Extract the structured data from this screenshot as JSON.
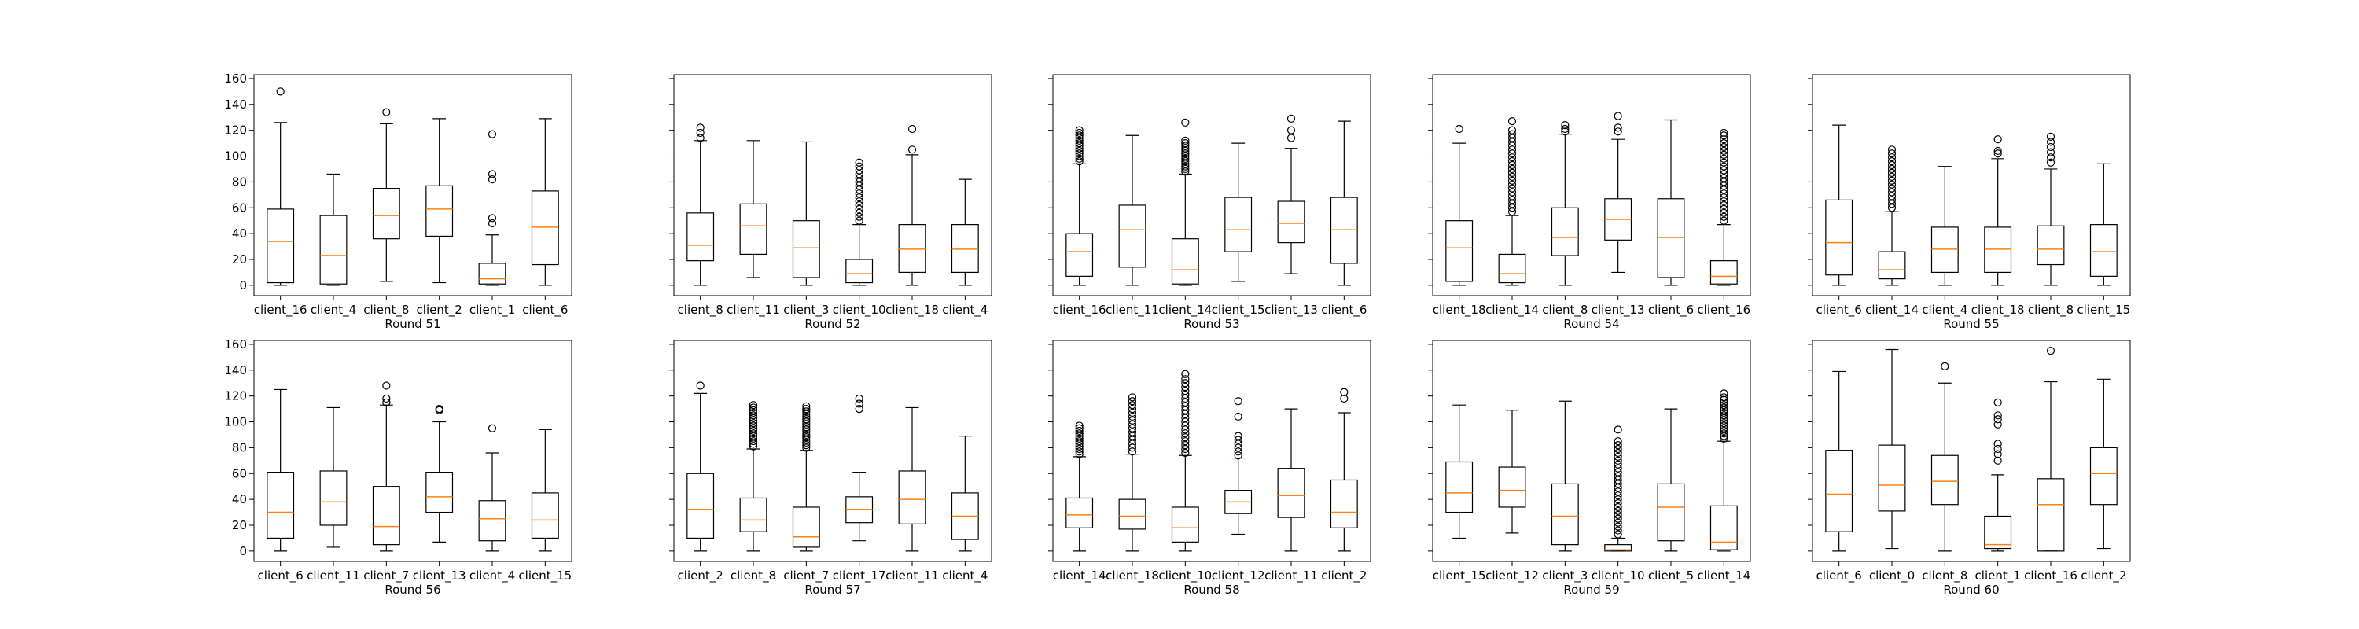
{
  "chart_data": {
    "type": "boxplot",
    "shared_y": true,
    "ylim": [
      -8,
      163
    ],
    "yticks": [
      0,
      20,
      40,
      60,
      80,
      100,
      120,
      140,
      160
    ],
    "colors": {
      "box": "#000000",
      "median": "#ff7f0e",
      "flier": "#000000",
      "frame": "#000000"
    },
    "panels": [
      {
        "xlabel": "Round 51",
        "boxes": [
          {
            "label": "client_16",
            "whislo": 0,
            "q1": 2,
            "med": 34,
            "q3": 59,
            "whishi": 126,
            "fliers": [
              150
            ]
          },
          {
            "label": "client_4",
            "whislo": 0,
            "q1": 1,
            "med": 23,
            "q3": 54,
            "whishi": 86,
            "fliers": []
          },
          {
            "label": "client_8",
            "whislo": 3,
            "q1": 36,
            "med": 54,
            "q3": 75,
            "whishi": 125,
            "fliers": [
              134
            ]
          },
          {
            "label": "client_2",
            "whislo": 2,
            "q1": 38,
            "med": 59,
            "q3": 77,
            "whishi": 129,
            "fliers": []
          },
          {
            "label": "client_1",
            "whislo": 0,
            "q1": 1,
            "med": 5,
            "q3": 17,
            "whishi": 39,
            "fliers": [
              48,
              52,
              82,
              86,
              117
            ]
          },
          {
            "label": "client_6",
            "whislo": 0,
            "q1": 16,
            "med": 45,
            "q3": 73,
            "whishi": 129,
            "fliers": []
          }
        ]
      },
      {
        "xlabel": "Round 52",
        "boxes": [
          {
            "label": "client_8",
            "whislo": 0,
            "q1": 19,
            "med": 31,
            "q3": 56,
            "whishi": 112,
            "fliers": [
              114,
              118,
              122
            ]
          },
          {
            "label": "client_11",
            "whislo": 6,
            "q1": 24,
            "med": 46,
            "q3": 63,
            "whishi": 112,
            "fliers": []
          },
          {
            "label": "client_3",
            "whislo": 0,
            "q1": 6,
            "med": 29,
            "q3": 50,
            "whishi": 111,
            "fliers": []
          },
          {
            "label": "client_10",
            "whislo": 0,
            "q1": 2,
            "med": 9,
            "q3": 20,
            "whishi": 47,
            "fliers": [
              50,
              53,
              56,
              59,
              62,
              65,
              68,
              71,
              74,
              77,
              80,
              83,
              86,
              89,
              92,
              95
            ]
          },
          {
            "label": "client_18",
            "whislo": 0,
            "q1": 10,
            "med": 28,
            "q3": 47,
            "whishi": 101,
            "fliers": [
              105,
              121
            ]
          },
          {
            "label": "client_4",
            "whislo": 0,
            "q1": 10,
            "med": 28,
            "q3": 47,
            "whishi": 82,
            "fliers": []
          }
        ]
      },
      {
        "xlabel": "Round 53",
        "boxes": [
          {
            "label": "client_16",
            "whislo": 0,
            "q1": 7,
            "med": 26,
            "q3": 40,
            "whishi": 94,
            "fliers": [
              96,
              98,
              100,
              102,
              104,
              106,
              108,
              110,
              112,
              114,
              116,
              118,
              120
            ]
          },
          {
            "label": "client_11",
            "whislo": 0,
            "q1": 14,
            "med": 43,
            "q3": 62,
            "whishi": 116,
            "fliers": []
          },
          {
            "label": "client_14",
            "whislo": 0,
            "q1": 1,
            "med": 12,
            "q3": 36,
            "whishi": 86,
            "fliers": [
              88,
              90,
              92,
              94,
              96,
              98,
              100,
              102,
              104,
              106,
              108,
              110,
              112,
              126
            ]
          },
          {
            "label": "client_15",
            "whislo": 3,
            "q1": 26,
            "med": 43,
            "q3": 68,
            "whishi": 110,
            "fliers": []
          },
          {
            "label": "client_13",
            "whislo": 9,
            "q1": 33,
            "med": 48,
            "q3": 65,
            "whishi": 106,
            "fliers": [
              114,
              120,
              129
            ]
          },
          {
            "label": "client_6",
            "whislo": 0,
            "q1": 17,
            "med": 43,
            "q3": 68,
            "whishi": 127,
            "fliers": []
          }
        ]
      },
      {
        "xlabel": "Round 54",
        "boxes": [
          {
            "label": "client_18",
            "whislo": 0,
            "q1": 3,
            "med": 29,
            "q3": 50,
            "whishi": 110,
            "fliers": [
              121
            ]
          },
          {
            "label": "client_14",
            "whislo": 0,
            "q1": 2,
            "med": 9,
            "q3": 24,
            "whishi": 54,
            "fliers": [
              57,
              60,
              63,
              66,
              69,
              72,
              75,
              78,
              81,
              84,
              87,
              90,
              93,
              96,
              99,
              102,
              105,
              108,
              111,
              114,
              117,
              120,
              127
            ]
          },
          {
            "label": "client_8",
            "whislo": 0,
            "q1": 23,
            "med": 37,
            "q3": 60,
            "whishi": 117,
            "fliers": [
              119,
              121,
              124
            ]
          },
          {
            "label": "client_13",
            "whislo": 10,
            "q1": 35,
            "med": 51,
            "q3": 67,
            "whishi": 113,
            "fliers": [
              119,
              122,
              131
            ]
          },
          {
            "label": "client_6",
            "whislo": 0,
            "q1": 6,
            "med": 37,
            "q3": 67,
            "whishi": 128,
            "fliers": []
          },
          {
            "label": "client_16",
            "whislo": 0,
            "q1": 1,
            "med": 7,
            "q3": 19,
            "whishi": 47,
            "fliers": [
              50,
              53,
              56,
              59,
              62,
              65,
              68,
              71,
              74,
              77,
              80,
              83,
              86,
              89,
              92,
              95,
              98,
              101,
              104,
              107,
              110,
              113,
              116,
              118
            ]
          }
        ]
      },
      {
        "xlabel": "Round 55",
        "boxes": [
          {
            "label": "client_6",
            "whislo": 0,
            "q1": 8,
            "med": 33,
            "q3": 66,
            "whishi": 124,
            "fliers": []
          },
          {
            "label": "client_14",
            "whislo": 0,
            "q1": 5,
            "med": 12,
            "q3": 26,
            "whishi": 57,
            "fliers": [
              60,
              63,
              66,
              69,
              72,
              75,
              78,
              81,
              84,
              87,
              90,
              93,
              96,
              99,
              102,
              105
            ]
          },
          {
            "label": "client_4",
            "whislo": 0,
            "q1": 10,
            "med": 28,
            "q3": 45,
            "whishi": 92,
            "fliers": []
          },
          {
            "label": "client_18",
            "whislo": 0,
            "q1": 10,
            "med": 28,
            "q3": 45,
            "whishi": 98,
            "fliers": [
              102,
              104,
              113
            ]
          },
          {
            "label": "client_8",
            "whislo": 0,
            "q1": 16,
            "med": 28,
            "q3": 46,
            "whishi": 90,
            "fliers": [
              95,
              99,
              103,
              107,
              111,
              115
            ]
          },
          {
            "label": "client_15",
            "whislo": 0,
            "q1": 7,
            "med": 26,
            "q3": 47,
            "whishi": 94,
            "fliers": []
          }
        ]
      },
      {
        "xlabel": "Round 56",
        "boxes": [
          {
            "label": "client_6",
            "whislo": 0,
            "q1": 10,
            "med": 30,
            "q3": 61,
            "whishi": 125,
            "fliers": []
          },
          {
            "label": "client_11",
            "whislo": 3,
            "q1": 20,
            "med": 38,
            "q3": 62,
            "whishi": 111,
            "fliers": []
          },
          {
            "label": "client_7",
            "whislo": 0,
            "q1": 5,
            "med": 19,
            "q3": 50,
            "whishi": 113,
            "fliers": [
              115,
              118,
              128
            ]
          },
          {
            "label": "client_13",
            "whislo": 7,
            "q1": 30,
            "med": 42,
            "q3": 61,
            "whishi": 100,
            "fliers": [
              109,
              110
            ]
          },
          {
            "label": "client_4",
            "whislo": 0,
            "q1": 8,
            "med": 25,
            "q3": 39,
            "whishi": 76,
            "fliers": [
              95
            ]
          },
          {
            "label": "client_15",
            "whislo": 0,
            "q1": 10,
            "med": 24,
            "q3": 45,
            "whishi": 94,
            "fliers": []
          }
        ]
      },
      {
        "xlabel": "Round 57",
        "boxes": [
          {
            "label": "client_2",
            "whislo": 0,
            "q1": 10,
            "med": 32,
            "q3": 60,
            "whishi": 122,
            "fliers": [
              128
            ]
          },
          {
            "label": "client_8",
            "whislo": 0,
            "q1": 15,
            "med": 24,
            "q3": 41,
            "whishi": 79,
            "fliers": [
              81,
              83,
              85,
              87,
              89,
              91,
              93,
              95,
              97,
              99,
              101,
              103,
              105,
              107,
              109,
              111,
              113
            ]
          },
          {
            "label": "client_7",
            "whislo": 0,
            "q1": 3,
            "med": 11,
            "q3": 34,
            "whishi": 78,
            "fliers": [
              80,
              82,
              84,
              86,
              88,
              90,
              92,
              94,
              96,
              98,
              100,
              102,
              104,
              106,
              108,
              110,
              112
            ]
          },
          {
            "label": "client_17",
            "whislo": 8,
            "q1": 22,
            "med": 32,
            "q3": 42,
            "whishi": 61,
            "fliers": [
              110,
              114,
              118
            ]
          },
          {
            "label": "client_11",
            "whislo": 0,
            "q1": 21,
            "med": 40,
            "q3": 62,
            "whishi": 111,
            "fliers": []
          },
          {
            "label": "client_4",
            "whislo": 0,
            "q1": 9,
            "med": 27,
            "q3": 45,
            "whishi": 89,
            "fliers": []
          }
        ]
      },
      {
        "xlabel": "Round 58",
        "boxes": [
          {
            "label": "client_14",
            "whislo": 0,
            "q1": 18,
            "med": 28,
            "q3": 41,
            "whishi": 73,
            "fliers": [
              75,
              77,
              79,
              81,
              83,
              85,
              87,
              89,
              91,
              93,
              95,
              97
            ]
          },
          {
            "label": "client_18",
            "whislo": 0,
            "q1": 17,
            "med": 27,
            "q3": 40,
            "whishi": 75,
            "fliers": [
              77,
              80,
              83,
              86,
              89,
              92,
              95,
              98,
              101,
              104,
              107,
              110,
              113,
              116,
              119
            ]
          },
          {
            "label": "client_10",
            "whislo": 0,
            "q1": 7,
            "med": 18,
            "q3": 34,
            "whishi": 74,
            "fliers": [
              76,
              79,
              82,
              85,
              88,
              91,
              94,
              97,
              100,
              103,
              106,
              109,
              112,
              115,
              118,
              121,
              124,
              127,
              130,
              133,
              137
            ]
          },
          {
            "label": "client_12",
            "whislo": 13,
            "q1": 29,
            "med": 38,
            "q3": 47,
            "whishi": 72,
            "fliers": [
              74,
              77,
              80,
              83,
              86,
              89,
              104,
              116
            ]
          },
          {
            "label": "client_11",
            "whislo": 0,
            "q1": 26,
            "med": 43,
            "q3": 64,
            "whishi": 110,
            "fliers": []
          },
          {
            "label": "client_2",
            "whislo": 0,
            "q1": 18,
            "med": 30,
            "q3": 55,
            "whishi": 107,
            "fliers": [
              118,
              123
            ]
          }
        ]
      },
      {
        "xlabel": "Round 59",
        "boxes": [
          {
            "label": "client_15",
            "whislo": 10,
            "q1": 30,
            "med": 45,
            "q3": 69,
            "whishi": 113,
            "fliers": []
          },
          {
            "label": "client_12",
            "whislo": 14,
            "q1": 34,
            "med": 47,
            "q3": 65,
            "whishi": 109,
            "fliers": []
          },
          {
            "label": "client_3",
            "whislo": 0,
            "q1": 5,
            "med": 27,
            "q3": 52,
            "whishi": 116,
            "fliers": []
          },
          {
            "label": "client_10",
            "whislo": 0,
            "q1": 0,
            "med": 1,
            "q3": 5,
            "whishi": 10,
            "fliers": [
              13,
              16,
              19,
              22,
              25,
              28,
              31,
              34,
              37,
              40,
              43,
              46,
              49,
              52,
              55,
              58,
              61,
              64,
              67,
              70,
              73,
              76,
              79,
              82,
              85,
              94
            ]
          },
          {
            "label": "client_5",
            "whislo": 0,
            "q1": 8,
            "med": 34,
            "q3": 52,
            "whishi": 110,
            "fliers": []
          },
          {
            "label": "client_14",
            "whislo": 0,
            "q1": 1,
            "med": 7,
            "q3": 35,
            "whishi": 85,
            "fliers": [
              87,
              89,
              91,
              93,
              95,
              97,
              99,
              101,
              103,
              105,
              107,
              109,
              111,
              113,
              115,
              117,
              119,
              122
            ]
          }
        ]
      },
      {
        "xlabel": "Round 60",
        "boxes": [
          {
            "label": "client_6",
            "whislo": 0,
            "q1": 15,
            "med": 44,
            "q3": 78,
            "whishi": 139,
            "fliers": []
          },
          {
            "label": "client_0",
            "whislo": 2,
            "q1": 31,
            "med": 51,
            "q3": 82,
            "whishi": 156,
            "fliers": []
          },
          {
            "label": "client_8",
            "whislo": 0,
            "q1": 36,
            "med": 54,
            "q3": 74,
            "whishi": 130,
            "fliers": [
              143
            ]
          },
          {
            "label": "client_1",
            "whislo": 0,
            "q1": 2,
            "med": 5,
            "q3": 27,
            "whishi": 59,
            "fliers": [
              70,
              75,
              79,
              83,
              98,
              102,
              105,
              115
            ]
          },
          {
            "label": "client_16",
            "whislo": 0,
            "q1": 0,
            "med": 36,
            "q3": 56,
            "whishi": 131,
            "fliers": [
              155
            ]
          },
          {
            "label": "client_2",
            "whislo": 2,
            "q1": 36,
            "med": 60,
            "q3": 80,
            "whishi": 133,
            "fliers": []
          }
        ]
      }
    ]
  }
}
